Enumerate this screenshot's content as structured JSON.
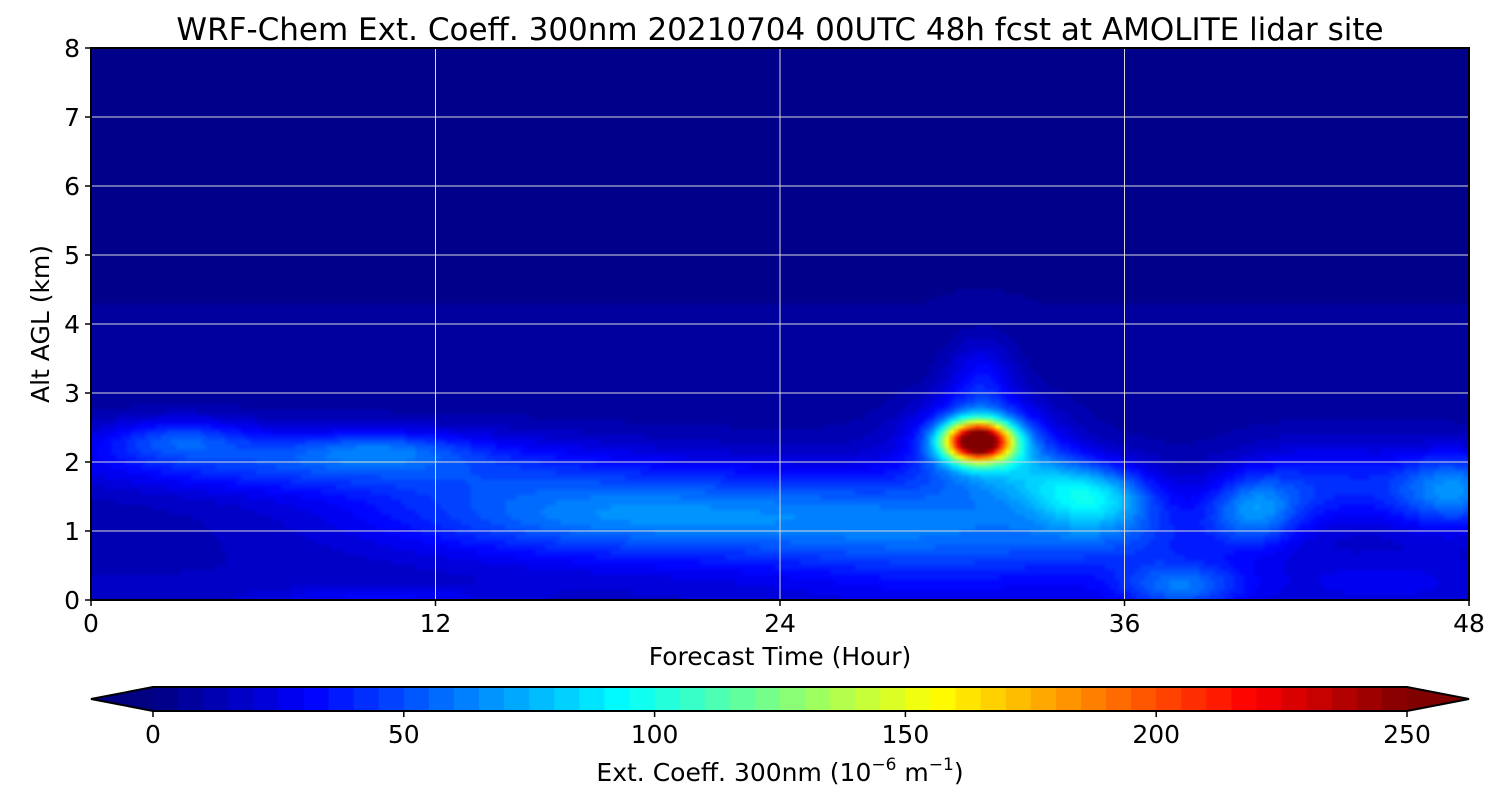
{
  "chart_data": {
    "type": "heatmap",
    "title": "WRF-Chem Ext. Coeff. 300nm  20210704 00UTC 48h fcst at AMOLITE lidar site",
    "xlabel": "Forecast Time (Hour)",
    "ylabel": "Alt AGL (km)",
    "xlim": [
      0,
      48
    ],
    "ylim": [
      0,
      8
    ],
    "xticks": [
      "0",
      "12",
      "24",
      "36",
      "48"
    ],
    "yticks": [
      "0",
      "1",
      "2",
      "3",
      "4",
      "5",
      "6",
      "7",
      "8"
    ],
    "grid": true,
    "colormap": "jet",
    "colorbar": {
      "label_main": "Ext. Coeff. 300nm  (10",
      "label_exp1": "−6",
      "label_mid": " m",
      "label_exp2": "−1",
      "label_end": ")",
      "min": 0,
      "max": 250,
      "ticks": [
        "0",
        "50",
        "100",
        "150",
        "200",
        "250"
      ],
      "extend": "both"
    },
    "features": [
      {
        "t": 31,
        "z": 2.3,
        "peak": 255,
        "desc": "maximum"
      },
      {
        "t": 35,
        "z": 1.5,
        "peak": 80
      },
      {
        "t": 40,
        "z": 1.3,
        "peak": 70
      },
      {
        "t": 47,
        "z": 1.6,
        "peak": 75
      },
      {
        "t": 3,
        "z": 2.3,
        "peak": 65
      },
      {
        "t": 38,
        "z": 0.2,
        "peak": 65
      },
      {
        "t": 9,
        "z": 2.0,
        "peak": 55
      }
    ]
  }
}
